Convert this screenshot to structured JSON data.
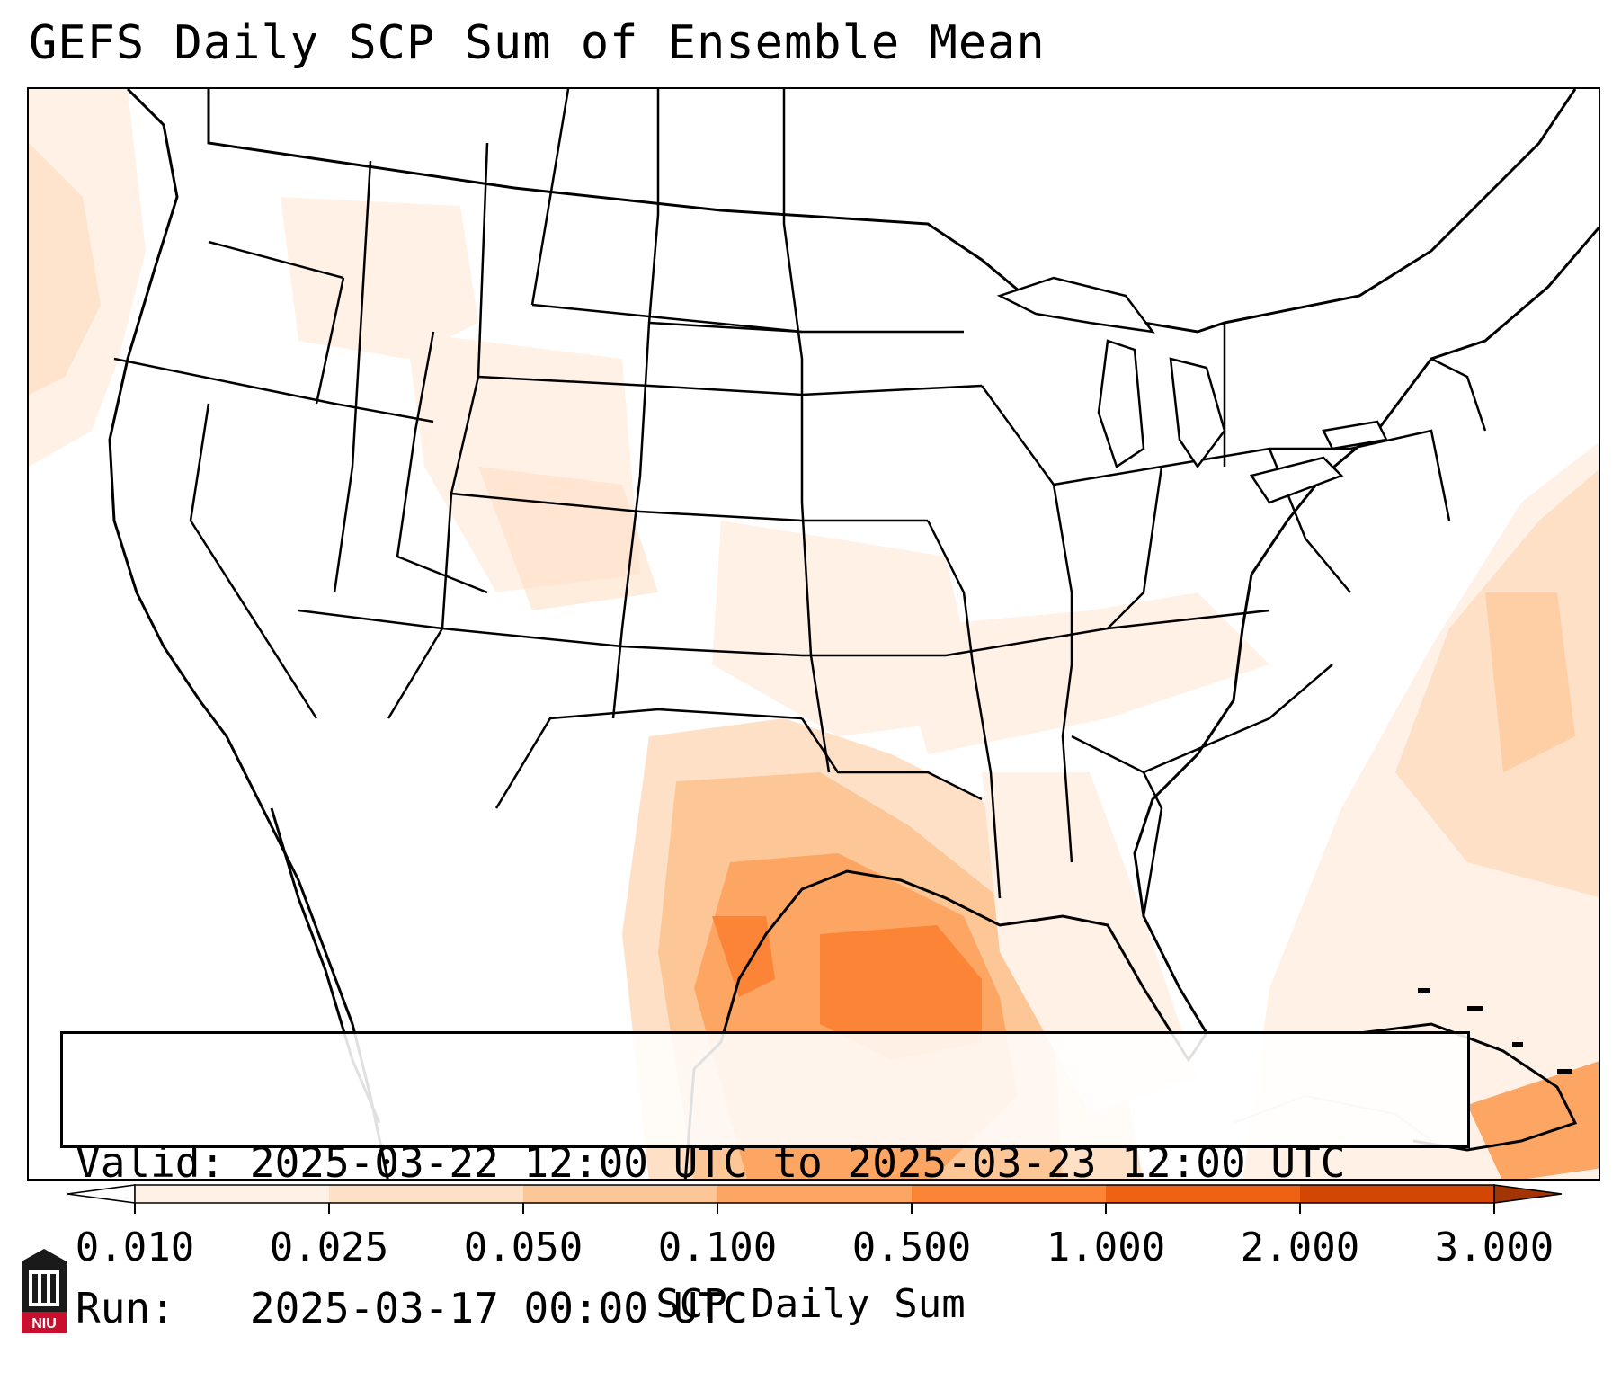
{
  "title": "GEFS Daily SCP Sum of Ensemble Mean",
  "info": {
    "valid_label": "Valid:",
    "valid_value": "2025-03-22 12:00 UTC to 2025-03-23 12:00 UTC",
    "run_label": "Run:",
    "run_value": "2025-03-17 00:00 UTC"
  },
  "colorbar": {
    "label": "SCP Daily Sum",
    "ticks": [
      "0.010",
      "0.025",
      "0.050",
      "0.100",
      "0.500",
      "1.000",
      "2.000",
      "3.000"
    ],
    "colors": [
      "#fff1e6",
      "#fee0c7",
      "#fdc697",
      "#fda562",
      "#fb8436",
      "#ef6213",
      "#d44702"
    ],
    "extend": "both"
  },
  "map": {
    "region": "CONUS",
    "field": "SCP daily sum",
    "highlight_regions": [
      "Texas",
      "Gulf of Mexico",
      "Lower Mississippi Valley",
      "Western Atlantic"
    ]
  },
  "logo": {
    "text": "NIU",
    "icon": "university-tower-logo-icon"
  }
}
